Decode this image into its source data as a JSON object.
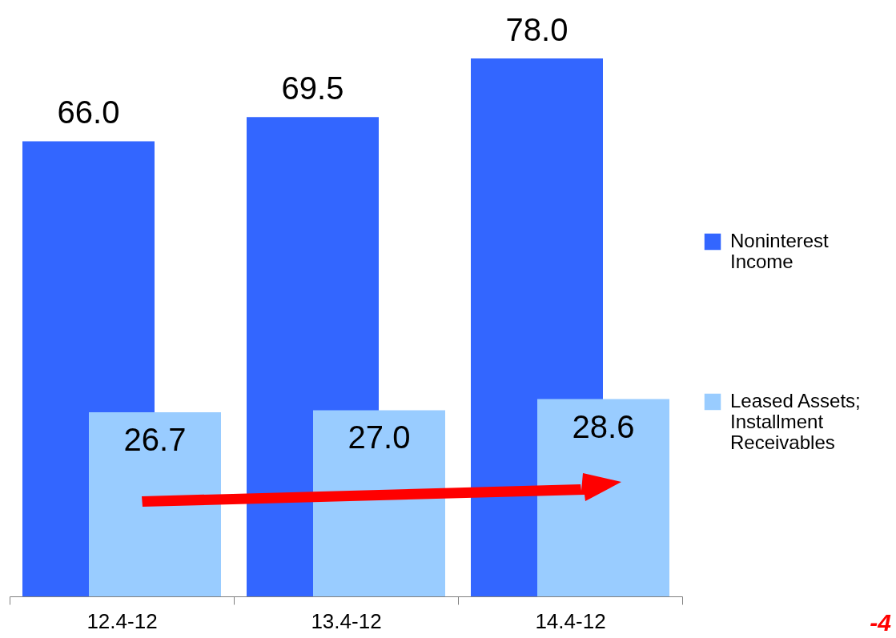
{
  "chart_data": {
    "type": "bar",
    "categories": [
      "12.4-12",
      "13.4-12",
      "14.4-12"
    ],
    "series": [
      {
        "name": "Noninterest Income",
        "color": "#3366ff",
        "values": [
          66.0,
          69.5,
          78.0
        ],
        "value_labels": [
          "66.0",
          "69.5",
          "78.0"
        ]
      },
      {
        "name": "Leased Assets; Installment Receivables",
        "color": "#99ccff",
        "values": [
          26.7,
          27.0,
          28.6
        ],
        "value_labels": [
          "26.7",
          "27.0",
          "28.6"
        ]
      }
    ],
    "legend": "right",
    "grid": false,
    "annotations": [
      "-4"
    ]
  }
}
